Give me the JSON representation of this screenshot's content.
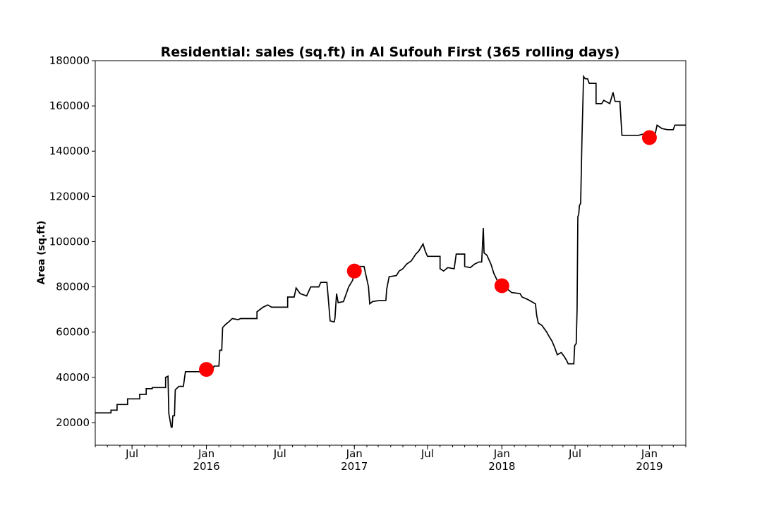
{
  "chart_data": {
    "type": "line",
    "title": "Residential: sales (sq.ft) in Al Sufouh First (365 rolling days)",
    "xlabel": "",
    "ylabel": "Area (sq.ft)",
    "ylim": [
      10000,
      180000
    ],
    "xlim": [
      "2015-04-01",
      "2019-04-01"
    ],
    "grid": false,
    "y_ticks": [
      20000,
      40000,
      60000,
      80000,
      100000,
      120000,
      140000,
      160000,
      180000
    ],
    "x_ticks": [
      {
        "date": "2015-07-01",
        "label": "Jul"
      },
      {
        "date": "2016-01-01",
        "label": "Jan\n2016"
      },
      {
        "date": "2016-07-01",
        "label": "Jul"
      },
      {
        "date": "2017-01-01",
        "label": "Jan\n2017"
      },
      {
        "date": "2017-07-01",
        "label": "Jul"
      },
      {
        "date": "2018-01-01",
        "label": "Jan\n2018"
      },
      {
        "date": "2018-07-01",
        "label": "Jul"
      },
      {
        "date": "2019-01-01",
        "label": "Jan\n2019"
      }
    ],
    "series": [
      {
        "color": "#000000",
        "points": [
          [
            "2015-04-01",
            24300
          ],
          [
            "2015-05-10",
            24300
          ],
          [
            "2015-05-10",
            25500
          ],
          [
            "2015-05-25",
            25500
          ],
          [
            "2015-05-25",
            28000
          ],
          [
            "2015-06-20",
            28000
          ],
          [
            "2015-06-20",
            30500
          ],
          [
            "2015-07-20",
            30500
          ],
          [
            "2015-07-20",
            32500
          ],
          [
            "2015-08-05",
            32500
          ],
          [
            "2015-08-05",
            35000
          ],
          [
            "2015-08-20",
            35000
          ],
          [
            "2015-08-20",
            35500
          ],
          [
            "2015-09-22",
            35500
          ],
          [
            "2015-09-22",
            40000
          ],
          [
            "2015-09-28",
            40500
          ],
          [
            "2015-09-30",
            24000
          ],
          [
            "2015-10-06",
            18000
          ],
          [
            "2015-10-08",
            18000
          ],
          [
            "2015-10-10",
            23000
          ],
          [
            "2015-10-14",
            23000
          ],
          [
            "2015-10-16",
            34500
          ],
          [
            "2015-10-25",
            36000
          ],
          [
            "2015-11-05",
            36000
          ],
          [
            "2015-11-10",
            42500
          ],
          [
            "2016-01-15",
            42500
          ],
          [
            "2016-01-20",
            45000
          ],
          [
            "2016-02-01",
            45000
          ],
          [
            "2016-02-03",
            52000
          ],
          [
            "2016-02-08",
            52000
          ],
          [
            "2016-02-10",
            62000
          ],
          [
            "2016-02-18",
            63500
          ],
          [
            "2016-02-25",
            64500
          ],
          [
            "2016-03-05",
            66000
          ],
          [
            "2016-03-20",
            65500
          ],
          [
            "2016-03-25",
            66000
          ],
          [
            "2016-05-05",
            66000
          ],
          [
            "2016-05-05",
            69000
          ],
          [
            "2016-05-20",
            71000
          ],
          [
            "2016-06-01",
            72000
          ],
          [
            "2016-06-10",
            71000
          ],
          [
            "2016-07-20",
            71000
          ],
          [
            "2016-07-20",
            75500
          ],
          [
            "2016-08-05",
            75500
          ],
          [
            "2016-08-10",
            79500
          ],
          [
            "2016-08-20",
            77000
          ],
          [
            "2016-09-05",
            76000
          ],
          [
            "2016-09-15",
            80000
          ],
          [
            "2016-10-05",
            80000
          ],
          [
            "2016-10-10",
            82000
          ],
          [
            "2016-10-25",
            82000
          ],
          [
            "2016-10-28",
            76000
          ],
          [
            "2016-11-02",
            65000
          ],
          [
            "2016-11-12",
            64500
          ],
          [
            "2016-11-14",
            66000
          ],
          [
            "2016-11-18",
            77000
          ],
          [
            "2016-11-22",
            73000
          ],
          [
            "2016-12-05",
            73500
          ],
          [
            "2016-12-12",
            77000
          ],
          [
            "2016-12-18",
            80000
          ],
          [
            "2016-12-28",
            83000
          ],
          [
            "2017-01-01",
            87000
          ],
          [
            "2017-01-08",
            88000
          ],
          [
            "2017-01-15",
            89000
          ],
          [
            "2017-01-25",
            89000
          ],
          [
            "2017-01-30",
            85000
          ],
          [
            "2017-02-05",
            80000
          ],
          [
            "2017-02-08",
            72500
          ],
          [
            "2017-02-15",
            73500
          ],
          [
            "2017-03-05",
            74000
          ],
          [
            "2017-03-20",
            74000
          ],
          [
            "2017-03-22",
            79000
          ],
          [
            "2017-03-28",
            84500
          ],
          [
            "2017-04-15",
            85000
          ],
          [
            "2017-04-22",
            87000
          ],
          [
            "2017-05-01",
            88000
          ],
          [
            "2017-05-10",
            90000
          ],
          [
            "2017-05-22",
            91500
          ],
          [
            "2017-06-02",
            94500
          ],
          [
            "2017-06-10",
            96000
          ],
          [
            "2017-06-20",
            99000
          ],
          [
            "2017-06-25",
            96000
          ],
          [
            "2017-07-01",
            93500
          ],
          [
            "2017-08-01",
            93500
          ],
          [
            "2017-08-01",
            88000
          ],
          [
            "2017-08-10",
            87000
          ],
          [
            "2017-08-20",
            88500
          ],
          [
            "2017-09-05",
            88000
          ],
          [
            "2017-09-10",
            94500
          ],
          [
            "2017-10-01",
            94500
          ],
          [
            "2017-10-01",
            89000
          ],
          [
            "2017-10-15",
            88500
          ],
          [
            "2017-10-25",
            90000
          ],
          [
            "2017-11-05",
            91000
          ],
          [
            "2017-11-12",
            91000
          ],
          [
            "2017-11-16",
            106000
          ],
          [
            "2017-11-18",
            95000
          ],
          [
            "2017-11-25",
            94000
          ],
          [
            "2017-12-05",
            90000
          ],
          [
            "2017-12-12",
            86000
          ],
          [
            "2017-12-20",
            83000
          ],
          [
            "2018-01-01",
            80500
          ],
          [
            "2018-01-15",
            79000
          ],
          [
            "2018-01-25",
            77500
          ],
          [
            "2018-02-15",
            77000
          ],
          [
            "2018-02-20",
            75500
          ],
          [
            "2018-03-05",
            74500
          ],
          [
            "2018-03-15",
            73500
          ],
          [
            "2018-03-25",
            72500
          ],
          [
            "2018-03-28",
            67500
          ],
          [
            "2018-04-01",
            64000
          ],
          [
            "2018-04-10",
            63000
          ],
          [
            "2018-04-22",
            60000
          ],
          [
            "2018-04-28",
            58000
          ],
          [
            "2018-05-05",
            56000
          ],
          [
            "2018-05-12",
            53000
          ],
          [
            "2018-05-18",
            50000
          ],
          [
            "2018-05-28",
            51000
          ],
          [
            "2018-06-05",
            49000
          ],
          [
            "2018-06-10",
            47500
          ],
          [
            "2018-06-14",
            46000
          ],
          [
            "2018-06-28",
            46000
          ],
          [
            "2018-06-30",
            54000
          ],
          [
            "2018-07-04",
            55000
          ],
          [
            "2018-07-06",
            70000
          ],
          [
            "2018-07-08",
            111000
          ],
          [
            "2018-07-10",
            112000
          ],
          [
            "2018-07-12",
            116000
          ],
          [
            "2018-07-15",
            117000
          ],
          [
            "2018-07-18",
            145000
          ],
          [
            "2018-07-22",
            173000
          ],
          [
            "2018-07-26",
            172000
          ],
          [
            "2018-08-01",
            172000
          ],
          [
            "2018-08-05",
            170000
          ],
          [
            "2018-08-22",
            170000
          ],
          [
            "2018-08-22",
            161000
          ],
          [
            "2018-09-05",
            161000
          ],
          [
            "2018-09-10",
            162500
          ],
          [
            "2018-09-25",
            161000
          ],
          [
            "2018-10-03",
            166000
          ],
          [
            "2018-10-08",
            162000
          ],
          [
            "2018-10-20",
            162000
          ],
          [
            "2018-10-25",
            147000
          ],
          [
            "2018-12-05",
            147000
          ],
          [
            "2018-12-15",
            147500
          ],
          [
            "2018-12-30",
            147000
          ],
          [
            "2019-01-15",
            147500
          ],
          [
            "2019-01-20",
            151500
          ],
          [
            "2019-02-01",
            150000
          ],
          [
            "2019-02-15",
            149500
          ],
          [
            "2019-03-01",
            149500
          ],
          [
            "2019-03-05",
            151500
          ],
          [
            "2019-04-01",
            151500
          ]
        ]
      }
    ],
    "markers": {
      "color": "#ff0000",
      "points": [
        [
          "2016-01-01",
          43500
        ],
        [
          "2017-01-01",
          87000
        ],
        [
          "2018-01-01",
          80500
        ],
        [
          "2019-01-01",
          146000
        ]
      ]
    }
  }
}
